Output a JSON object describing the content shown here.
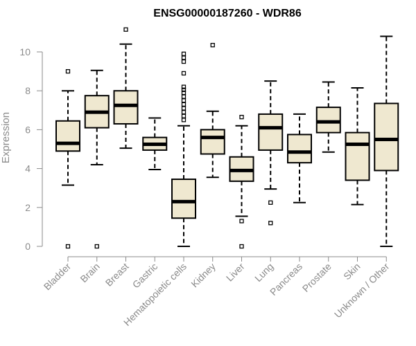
{
  "chart_data": {
    "type": "boxplot",
    "title": "ENSG00000187260 - WDR86",
    "xlabel": "",
    "ylabel": "Expression",
    "ylim": [
      0,
      11
    ],
    "yticks": [
      0,
      2,
      4,
      6,
      8,
      10
    ],
    "box_color": "#efe8d0",
    "categories": [
      "Bladder",
      "Brain",
      "Breast",
      "Gastric",
      "Hematopoietic cells",
      "Kidney",
      "Liver",
      "Lung",
      "Pancreas",
      "Prostate",
      "Skin",
      "Unknown / Other"
    ],
    "boxes": [
      {
        "name": "Bladder",
        "whisker_low": 3.15,
        "q1": 4.9,
        "median": 5.3,
        "q3": 6.45,
        "whisker_high": 8.0,
        "outliers": [
          9.0,
          0.0
        ]
      },
      {
        "name": "Brain",
        "whisker_low": 4.2,
        "q1": 6.1,
        "median": 6.9,
        "q3": 7.75,
        "whisker_high": 9.05,
        "outliers": [
          0.0
        ]
      },
      {
        "name": "Breast",
        "whisker_low": 5.05,
        "q1": 6.3,
        "median": 7.25,
        "q3": 8.0,
        "whisker_high": 10.4,
        "outliers": [
          11.15
        ]
      },
      {
        "name": "Gastric",
        "whisker_low": 3.95,
        "q1": 4.95,
        "median": 5.25,
        "q3": 5.6,
        "whisker_high": 6.6,
        "outliers": []
      },
      {
        "name": "Hematopoietic cells",
        "whisker_low": 0.0,
        "q1": 1.45,
        "median": 2.3,
        "q3": 3.45,
        "whisker_high": 6.2,
        "outliers": [
          6.5,
          6.7,
          6.9,
          7.1,
          7.3,
          7.5,
          7.7,
          7.9,
          8.05,
          8.2,
          8.9,
          9.5,
          9.7,
          9.9
        ]
      },
      {
        "name": "Kidney",
        "whisker_low": 3.55,
        "q1": 4.75,
        "median": 5.6,
        "q3": 6.0,
        "whisker_high": 6.95,
        "outliers": [
          10.35
        ]
      },
      {
        "name": "Liver",
        "whisker_low": 1.55,
        "q1": 3.35,
        "median": 3.9,
        "q3": 4.6,
        "whisker_high": 6.2,
        "outliers": [
          6.65,
          1.3,
          0.0
        ]
      },
      {
        "name": "Lung",
        "whisker_low": 2.95,
        "q1": 4.95,
        "median": 6.1,
        "q3": 6.8,
        "whisker_high": 8.5,
        "outliers": [
          2.25,
          1.2
        ]
      },
      {
        "name": "Pancreas",
        "whisker_low": 2.25,
        "q1": 4.3,
        "median": 4.85,
        "q3": 5.75,
        "whisker_high": 6.8,
        "outliers": []
      },
      {
        "name": "Prostate",
        "whisker_low": 4.85,
        "q1": 5.85,
        "median": 6.4,
        "q3": 7.15,
        "whisker_high": 8.45,
        "outliers": []
      },
      {
        "name": "Skin",
        "whisker_low": 2.15,
        "q1": 3.4,
        "median": 5.25,
        "q3": 5.85,
        "whisker_high": 8.15,
        "outliers": []
      },
      {
        "name": "Unknown / Other",
        "whisker_low": 0.0,
        "q1": 3.9,
        "median": 5.5,
        "q3": 7.35,
        "whisker_high": 10.8,
        "outliers": []
      }
    ]
  }
}
